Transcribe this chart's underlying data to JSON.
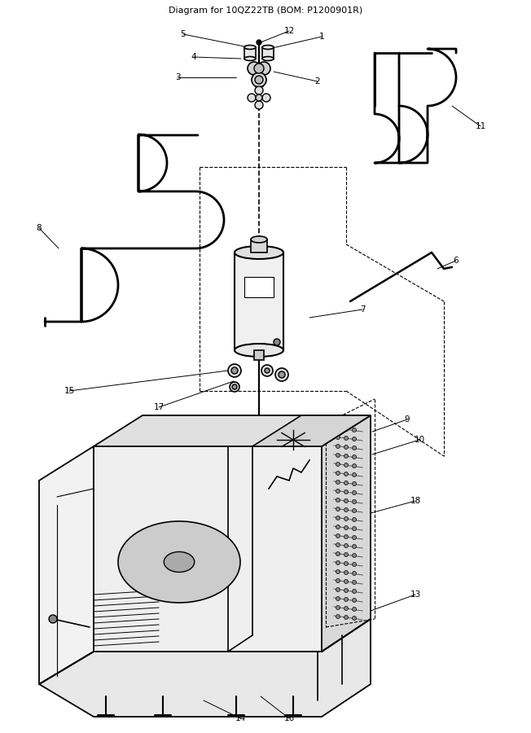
{
  "title": "Diagram for 10QZ22TB (BOM: P1200901R)",
  "title_fontsize": 8,
  "bg_color": "#ffffff",
  "line_color": "#000000",
  "label_fontsize": 7.5,
  "fig_width": 6.52,
  "fig_height": 9.0,
  "dpi": 100
}
